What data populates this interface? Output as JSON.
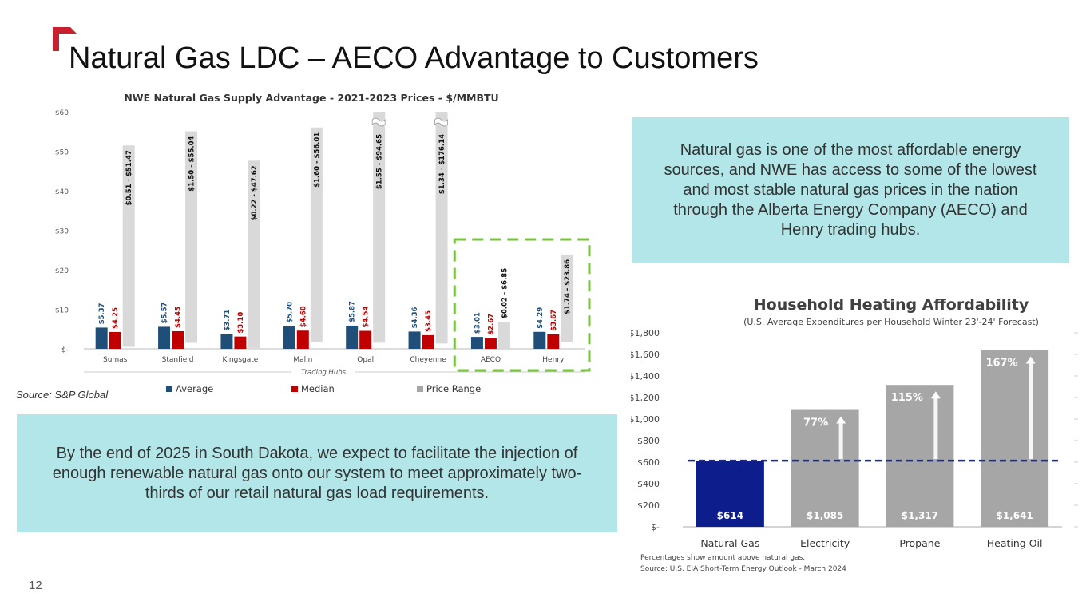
{
  "slide": {
    "title": "Natural Gas LDC – AECO Advantage to Customers",
    "source_left": "Source: S&P Global",
    "right_text": "Natural gas is one of the most affordable energy sources, and NWE has access to some of the lowest and most stable natural gas prices in the nation through the Alberta Energy Company (AECO) and Henry trading hubs.",
    "left_text": "By the end of 2025 in South Dakota, we expect to facilitate the injection of enough renewable natural gas onto our system to meet approximately two-thirds of our retail natural gas load requirements.",
    "page_number": "12",
    "accent_color": "#c8202f"
  },
  "chart_data": [
    {
      "type": "bar",
      "title": "NWE Natural Gas Supply Advantage - 2021-2023 Prices - $/MMBTU",
      "xlabel": "Trading Hubs",
      "ylabel": "",
      "ylim": [
        0,
        60
      ],
      "yticks": [
        "$-",
        "$10",
        "$20",
        "$30",
        "$40",
        "$50",
        "$60"
      ],
      "categories": [
        "Sumas",
        "Stanfield",
        "Kingsgate",
        "Malin",
        "Opal",
        "Cheyenne",
        "AECO",
        "Henry"
      ],
      "series": [
        {
          "name": "Average",
          "color": "#1f4e79",
          "values": [
            5.37,
            5.57,
            3.71,
            5.7,
            5.87,
            4.36,
            3.01,
            4.29
          ],
          "labels": [
            "$5.37",
            "$5.57",
            "$3.71",
            "$5.70",
            "$5.87",
            "$4.36",
            "$3.01",
            "$4.29"
          ]
        },
        {
          "name": "Median",
          "color": "#c00000",
          "values": [
            4.25,
            4.45,
            3.1,
            4.6,
            4.54,
            3.45,
            2.67,
            3.67
          ],
          "labels": [
            "$4.25",
            "$4.45",
            "$3.10",
            "$4.60",
            "$4.54",
            "$3.45",
            "$2.67",
            "$3.67"
          ]
        },
        {
          "name": "Price Range",
          "color": "#d9d9d9",
          "low": [
            0.51,
            1.5,
            0.22,
            1.6,
            1.55,
            1.34,
            0.02,
            1.74
          ],
          "high": [
            51.47,
            55.04,
            47.62,
            56.01,
            94.65,
            176.14,
            6.85,
            23.86
          ],
          "labels": [
            "$0.51 - $51.47",
            "$1.50 - $55.04",
            "$0.22 - $47.62",
            "$1.60 - $56.01",
            "$1.55 - $94.65",
            "$1.34 - $176.14",
            "$0.02 - $6.85",
            "$1.74 - $23.86"
          ]
        }
      ],
      "truncated_categories": [
        "Opal",
        "Cheyenne"
      ],
      "highlighted_categories": [
        "AECO",
        "Henry"
      ],
      "legend": "bottom",
      "grid": false
    },
    {
      "type": "bar",
      "title": "Household Heating Affordability",
      "subtitle": "(U.S. Average Expenditures per Household Winter 23'-24' Forecast)",
      "xlabel": "",
      "ylabel": "",
      "ylim": [
        0,
        1800
      ],
      "yticks": [
        "$-",
        "$200",
        "$400",
        "$600",
        "$800",
        "$1,000",
        "$1,200",
        "$1,400",
        "$1,600",
        "$1,800"
      ],
      "categories": [
        "Natural Gas",
        "Electricity",
        "Propane",
        "Heating Oil"
      ],
      "values": [
        614,
        1085,
        1317,
        1641
      ],
      "value_labels": [
        "$614",
        "$1,085",
        "$1,317",
        "$1,641"
      ],
      "percent_labels": [
        "",
        "77%",
        "115%",
        "167%"
      ],
      "colors": [
        "#0d1d8c",
        "#a6a6a6",
        "#a6a6a6",
        "#a6a6a6"
      ],
      "reference_line": 614,
      "notes": [
        "Percentages show amount above natural gas.",
        "Source: U.S. EIA Short-Term Energy Outlook - March 2024"
      ],
      "grid": false
    }
  ]
}
